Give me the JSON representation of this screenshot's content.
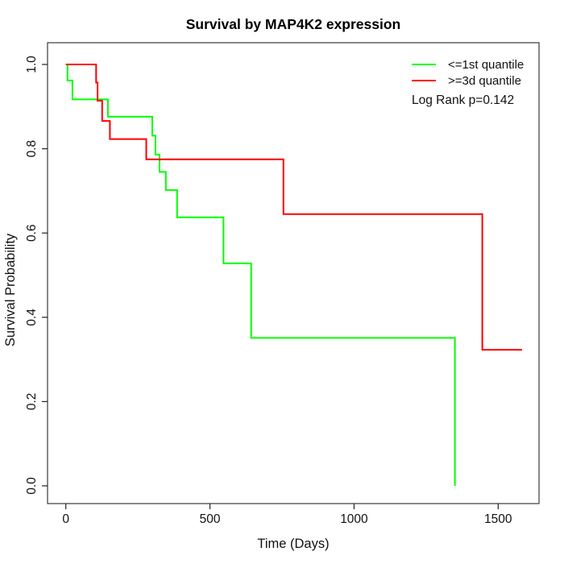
{
  "title": "Survival by MAP4K2 expression",
  "chart_data": {
    "type": "line",
    "subtype": "kaplan-meier-step-survival",
    "title": "Survival by MAP4K2 expression",
    "xlabel": "Time (Days)",
    "ylabel": "Survival Probability",
    "xlim": [
      0,
      1600
    ],
    "ylim": [
      0.0,
      1.0
    ],
    "x_ticks": [
      0,
      500,
      1000,
      1500
    ],
    "y_ticks": [
      0.0,
      0.2,
      0.4,
      0.6,
      0.8,
      1.0
    ],
    "grid": false,
    "legend_position": "top-right",
    "annotation": "Log Rank p=0.142",
    "legend": {
      "entries": [
        {
          "label": "<=1st quantile",
          "color": "#00ff00"
        },
        {
          "label": ">=3d quantile",
          "color": "#ff0000"
        }
      ]
    },
    "series": [
      {
        "name": "<=1st quantile",
        "color": "#00ff00",
        "steps": [
          [
            0,
            1.0
          ],
          [
            6,
            0.962
          ],
          [
            23,
            0.917
          ],
          [
            146,
            0.876
          ],
          [
            300,
            0.831
          ],
          [
            311,
            0.786
          ],
          [
            325,
            0.745
          ],
          [
            347,
            0.702
          ],
          [
            386,
            0.637
          ],
          [
            547,
            0.528
          ],
          [
            643,
            0.351
          ],
          [
            1350,
            0.0
          ]
        ],
        "end_day": 1350
      },
      {
        "name": ">=3d quantile",
        "color": "#ff0000",
        "steps": [
          [
            0,
            1.0
          ],
          [
            105,
            0.957
          ],
          [
            110,
            0.914
          ],
          [
            126,
            0.866
          ],
          [
            153,
            0.823
          ],
          [
            279,
            0.775
          ],
          [
            755,
            0.645
          ],
          [
            1445,
            0.323
          ]
        ],
        "end_day": 1583
      }
    ]
  }
}
